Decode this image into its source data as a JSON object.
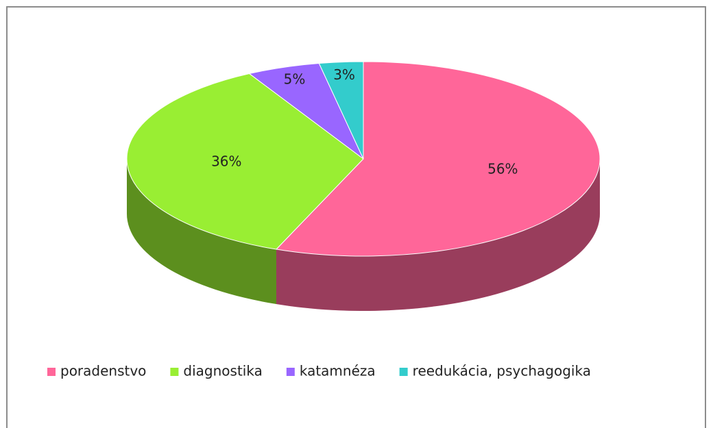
{
  "chart_data": {
    "type": "pie",
    "categories": [
      "poradenstvo",
      "diagnostika",
      "katamnéza",
      "reedukácia, psychagogika"
    ],
    "values": [
      56,
      36,
      5,
      3
    ],
    "value_labels": [
      "56%",
      "36%",
      "5%",
      "3%"
    ],
    "colors": [
      "#ff6699",
      "#99ee33",
      "#9966ff",
      "#33cccc"
    ],
    "legend": "bottom"
  }
}
